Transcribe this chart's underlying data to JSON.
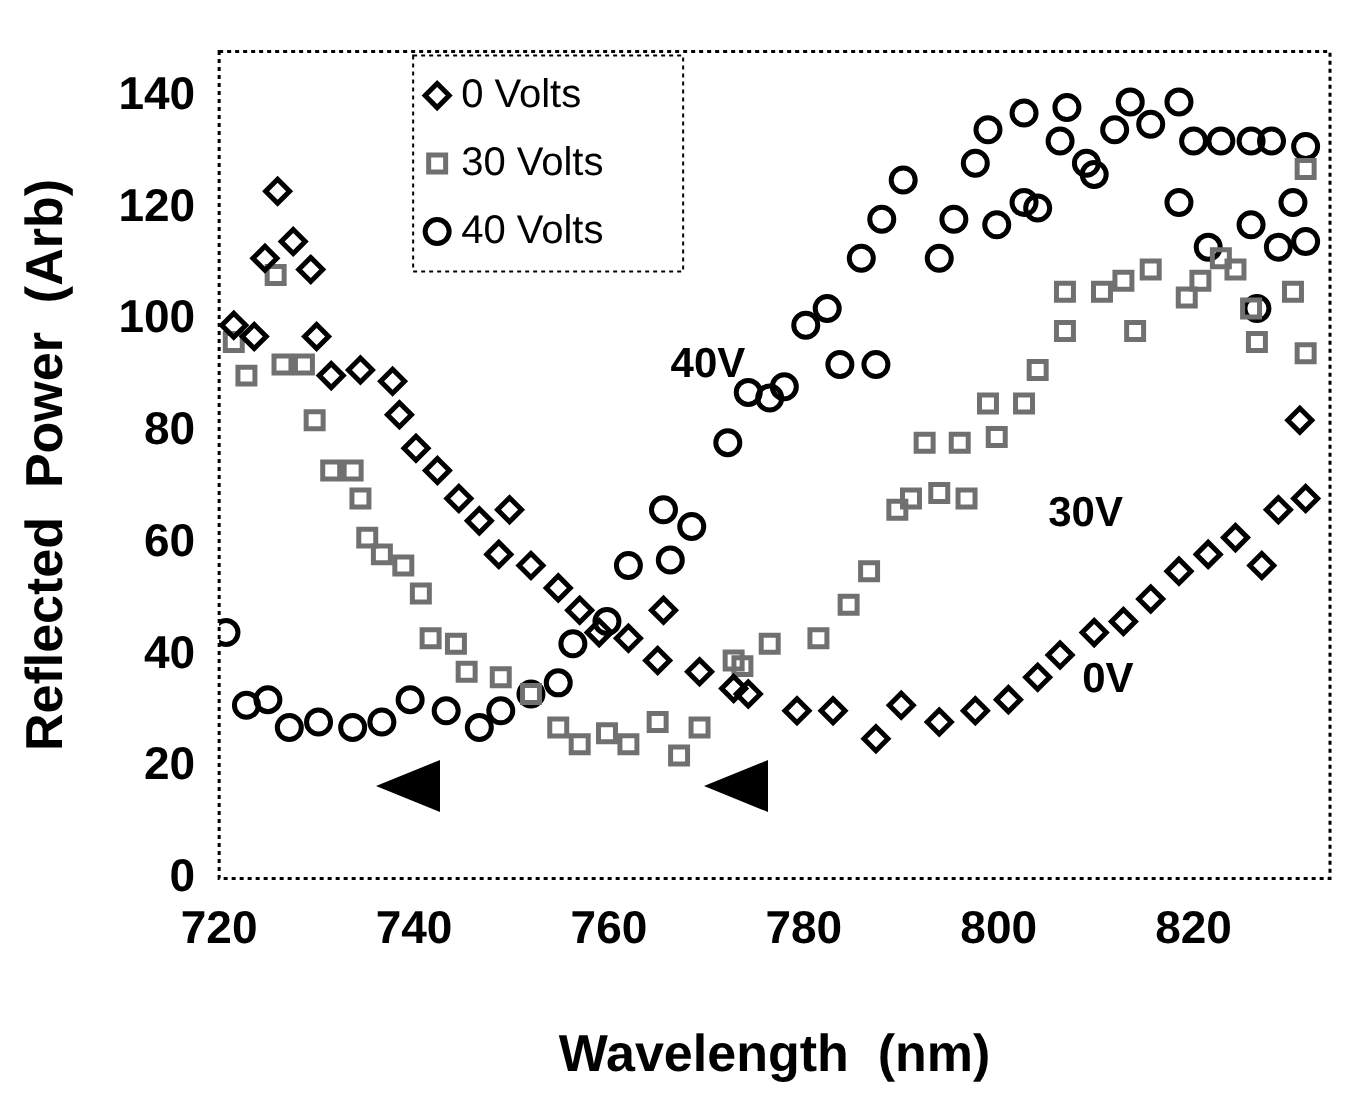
{
  "chart_data": {
    "type": "scatter",
    "xlabel": "Wavelength  (nm)",
    "ylabel": "Reflected  Power  (Arb)",
    "xlim": [
      720,
      834
    ],
    "xticks": [
      720,
      740,
      760,
      780,
      800,
      820
    ],
    "ylim": [
      0,
      148
    ],
    "yticks": [
      0,
      20,
      40,
      60,
      80,
      100,
      120,
      140
    ],
    "grid": false,
    "legend": "top left",
    "annotations": [
      "40V",
      "30V",
      "0V"
    ],
    "series": [
      {
        "name": "0 Volts",
        "color": "#000000",
        "marker": "diamond",
        "x": [
          721.5,
          723.6,
          724.7,
          726,
          727.6,
          729.4,
          730,
          731.5,
          734.5,
          737.8,
          738.5,
          740.2,
          742.4,
          744.6,
          746.7,
          748.7,
          749.8,
          752,
          754.8,
          757,
          759,
          762,
          765,
          765.6,
          769.3,
          772.8,
          774.3,
          779.3,
          783,
          787.4,
          790,
          793.9,
          797.6,
          801,
          804,
          806.3,
          809.8,
          812.8,
          815.6,
          818.5,
          821.5,
          824.3,
          827,
          828.7,
          830.9,
          831.5
        ],
        "values": [
          99,
          97,
          111,
          123,
          114,
          109,
          97,
          90,
          91,
          89,
          83,
          77,
          73,
          68,
          64,
          58,
          66,
          56,
          52,
          48,
          44,
          43,
          39,
          48,
          37,
          34,
          33,
          30,
          30,
          25,
          31,
          28,
          30,
          32,
          36,
          40,
          44,
          46,
          50,
          55,
          58,
          61,
          56,
          66,
          82,
          68
        ]
      },
      {
        "name": "30 Volts",
        "color": "#707070",
        "marker": "square",
        "x": [
          721.5,
          722.8,
          725.8,
          726.5,
          728.7,
          729.8,
          731.5,
          733.7,
          734.5,
          735.2,
          736.7,
          738.9,
          740.7,
          741.7,
          744.3,
          745.4,
          748.9,
          752,
          754.8,
          757,
          759.8,
          762,
          765,
          767.2,
          769.3,
          772.8,
          773.7,
          776.5,
          781.5,
          784.6,
          786.7,
          789.6,
          791,
          792.4,
          793.9,
          796,
          796.7,
          798.9,
          799.8,
          802.6,
          804,
          806.8,
          806.8,
          810.6,
          812.8,
          814,
          815.6,
          819.3,
          820.7,
          822.8,
          824.3,
          825.9,
          826.5,
          830.2,
          831.5,
          831.5
        ],
        "values": [
          96,
          90,
          108,
          92,
          92,
          82,
          73,
          73,
          68,
          61,
          58,
          56,
          51,
          43,
          42,
          37,
          36,
          33,
          27,
          24,
          26,
          24,
          28,
          22,
          27,
          39,
          38,
          42,
          43,
          49,
          55,
          66,
          68,
          78,
          69,
          78,
          68,
          85,
          79,
          85,
          91,
          98,
          105,
          105,
          107,
          98,
          109,
          104,
          107,
          111,
          109,
          102,
          96,
          105,
          127,
          94
        ]
      },
      {
        "name": "40 Volts",
        "color": "#000000",
        "marker": "circle",
        "x": [
          720.7,
          722.8,
          725,
          727.2,
          730.2,
          733.7,
          736.7,
          739.6,
          743.3,
          746.7,
          748.9,
          752,
          754.8,
          756.3,
          759.8,
          762,
          765.6,
          766.3,
          768.5,
          772.2,
          774.3,
          776.5,
          778,
          780.2,
          782.4,
          783.7,
          785.9,
          787.4,
          788,
          790.2,
          793.9,
          795.4,
          797.6,
          798.9,
          799.8,
          802.6,
          802.6,
          804,
          806.3,
          807,
          809,
          809.8,
          811.9,
          813.5,
          815.6,
          818.5,
          818.5,
          820,
          821.5,
          822.8,
          825.9,
          825.9,
          826.5,
          828,
          828.7,
          830.2,
          831.5,
          831.5
        ],
        "values": [
          44,
          31,
          32,
          27,
          28,
          27,
          28,
          32,
          30,
          27,
          30,
          33,
          35,
          42,
          46,
          56,
          66,
          57,
          63,
          78,
          87,
          86,
          88,
          99,
          102,
          92,
          111,
          92,
          118,
          125,
          111,
          118,
          128,
          134,
          117,
          121,
          137,
          120,
          132,
          138,
          128,
          126,
          134,
          139,
          135,
          139,
          121,
          132,
          113,
          132,
          132,
          117,
          102,
          132,
          113,
          121,
          131,
          114
        ]
      }
    ]
  }
}
